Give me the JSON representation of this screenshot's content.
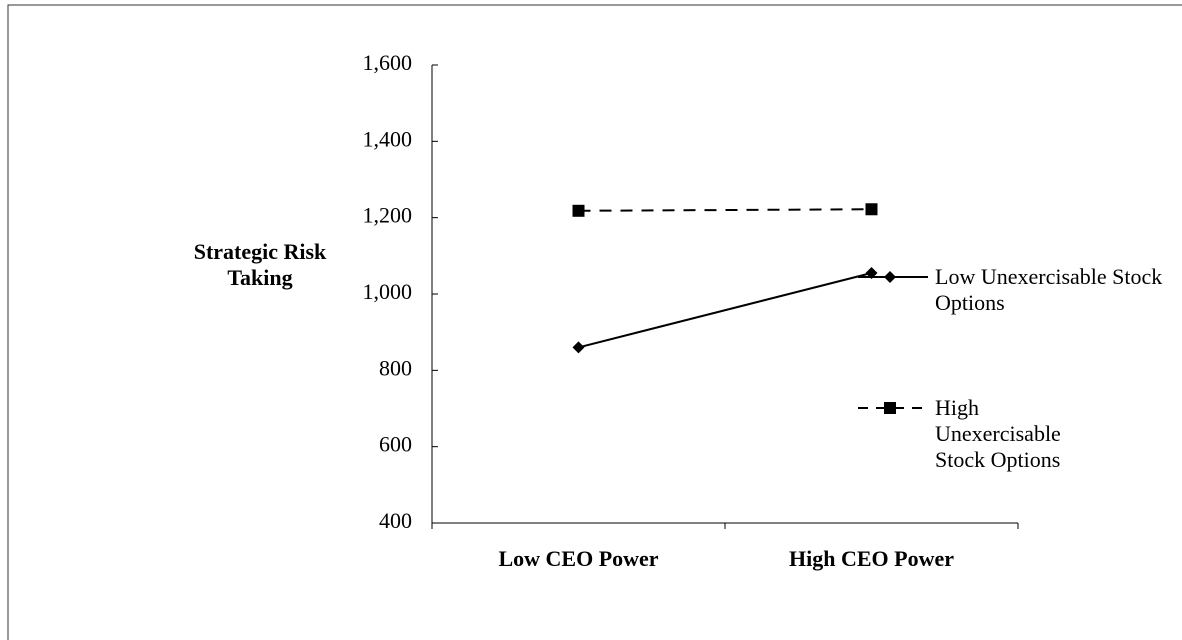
{
  "chart_data": {
    "type": "line",
    "y_label": "Strategic Risk Taking",
    "categories": [
      "Low CEO Power",
      "High CEO Power"
    ],
    "series": [
      {
        "name": "Low Unexercisable Stock Options",
        "color": "#000000",
        "dash": false,
        "marker": "diamond",
        "values": [
          860,
          1055
        ]
      },
      {
        "name": "High Unexercisable Stock Options",
        "color": "#000000",
        "dash": true,
        "marker": "square",
        "values": [
          1218,
          1222
        ]
      }
    ],
    "ylim": [
      400,
      1600
    ],
    "yticks": [
      400,
      600,
      800,
      {
        "value": 1000,
        "label": "1,000"
      },
      {
        "value": 1200,
        "label": "1,200"
      },
      {
        "value": 1400,
        "label": "1,400"
      },
      {
        "value": 1600,
        "label": "1,600"
      }
    ],
    "grid": false
  }
}
